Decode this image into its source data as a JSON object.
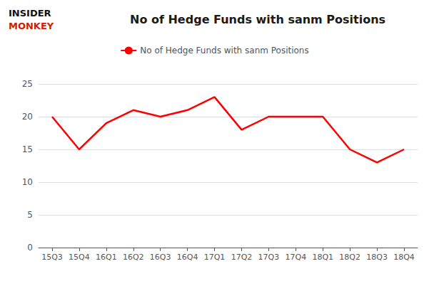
{
  "chart_data": {
    "type": "line",
    "title": "No of Hedge Funds with sanm Positions",
    "categories": [
      "15Q3",
      "15Q4",
      "16Q1",
      "16Q2",
      "16Q3",
      "16Q4",
      "17Q1",
      "17Q2",
      "17Q3",
      "17Q4",
      "18Q1",
      "18Q2",
      "18Q3",
      "18Q4"
    ],
    "series": [
      {
        "name": "No of Hedge Funds with sanm Positions",
        "color": "#ff0000",
        "values": [
          20,
          15,
          19,
          21,
          20,
          21,
          23,
          18,
          20,
          20,
          20,
          15,
          13,
          15
        ]
      }
    ],
    "ylim": [
      0,
      25
    ],
    "yticks": [
      0,
      5,
      10,
      15,
      20,
      25
    ],
    "grid": true,
    "legend": "top",
    "annotations": [
      {
        "text": "INSIDER",
        "color": "#111111"
      },
      {
        "text": "MONKEY",
        "color": "#cc2200"
      }
    ]
  }
}
